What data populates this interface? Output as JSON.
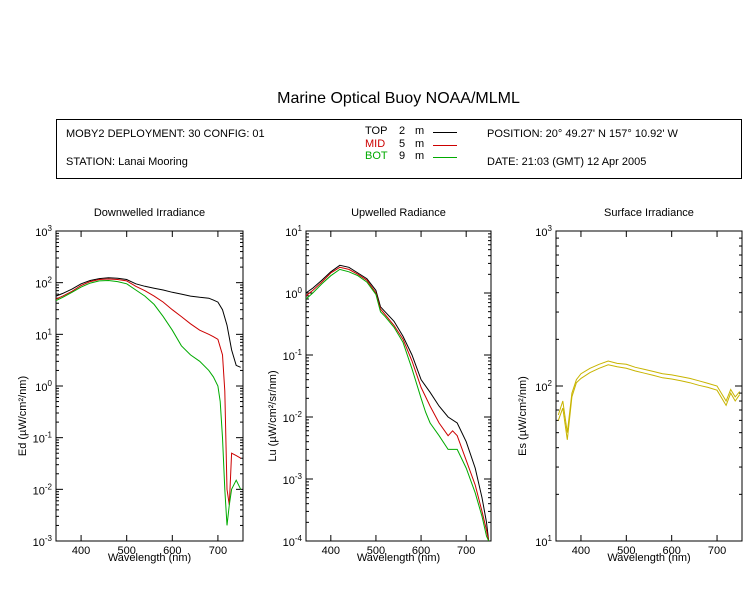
{
  "title": "Marine Optical Buoy NOAA/MLML",
  "info": {
    "deployment": "MOBY2 DEPLOYMENT: 30 CONFIG: 01",
    "station": "STATION: Lanai Mooring",
    "position": "POSITION: 20° 49.27' N   157° 10.92' W",
    "date": "DATE: 21:03 (GMT) 12 Apr 2005",
    "legend": [
      {
        "name": "TOP",
        "depth": "2",
        "unit": "m",
        "color": "#000000"
      },
      {
        "name": "MID",
        "depth": "5",
        "unit": "m",
        "color": "#cc0000"
      },
      {
        "name": "BOT",
        "depth": "9",
        "unit": "m",
        "color": "#00aa00"
      }
    ]
  },
  "chart_data": [
    {
      "type": "line",
      "title": "Downwelled Irradiance",
      "xlabel": "Wavelength (nm)",
      "ylabel": "Ed  (µW/cm²/nm)",
      "xlim": [
        345,
        755
      ],
      "ylim": [
        0.001,
        1000
      ],
      "yscale": "log",
      "xticks": [
        400,
        500,
        600,
        700
      ],
      "yticks": [
        {
          "v": 0.001,
          "label": "10",
          "exp": "-3"
        },
        {
          "v": 0.01,
          "label": "10",
          "exp": "-2"
        },
        {
          "v": 0.1,
          "label": "10",
          "exp": "-1"
        },
        {
          "v": 1,
          "label": "10",
          "exp": "0"
        },
        {
          "v": 10,
          "label": "10",
          "exp": "1"
        },
        {
          "v": 100,
          "label": "10",
          "exp": "2"
        },
        {
          "v": 1000,
          "label": "10",
          "exp": "3"
        }
      ],
      "series": [
        {
          "name": "TOP",
          "color": "#000000",
          "x": [
            345,
            360,
            380,
            400,
            420,
            440,
            460,
            480,
            500,
            520,
            540,
            560,
            580,
            600,
            620,
            640,
            660,
            680,
            690,
            700,
            710,
            720,
            730,
            740,
            750
          ],
          "y": [
            55,
            62,
            75,
            95,
            110,
            120,
            125,
            122,
            115,
            95,
            85,
            78,
            72,
            65,
            60,
            55,
            52,
            50,
            46,
            42,
            30,
            15,
            5,
            2.5,
            2.3
          ]
        },
        {
          "name": "MID",
          "color": "#cc0000",
          "x": [
            345,
            360,
            380,
            400,
            420,
            440,
            460,
            480,
            500,
            520,
            540,
            560,
            580,
            600,
            620,
            640,
            660,
            680,
            690,
            700,
            710,
            715,
            720,
            725,
            730,
            740,
            750
          ],
          "y": [
            48,
            55,
            68,
            88,
            105,
            115,
            118,
            115,
            108,
            85,
            70,
            55,
            42,
            30,
            22,
            16,
            12,
            10,
            9,
            8,
            4,
            0.8,
            0.01,
            0.005,
            0.05,
            0.045,
            0.04
          ]
        },
        {
          "name": "BOT",
          "color": "#00aa00",
          "x": [
            345,
            360,
            380,
            400,
            420,
            440,
            460,
            480,
            500,
            520,
            540,
            560,
            580,
            600,
            620,
            640,
            660,
            680,
            690,
            700,
            705,
            710,
            715,
            720,
            725,
            730,
            740,
            750
          ],
          "y": [
            45,
            52,
            65,
            82,
            98,
            108,
            110,
            105,
            95,
            72,
            55,
            38,
            22,
            12,
            6,
            4,
            3,
            2,
            1.5,
            1,
            0.5,
            0.1,
            0.01,
            0.002,
            0.005,
            0.01,
            0.015,
            0.01
          ]
        }
      ]
    },
    {
      "type": "line",
      "title": "Upwelled Radiance",
      "xlabel": "Wavelength (nm)",
      "ylabel": "Lu  (µW/cm²/sr/nm)",
      "xlim": [
        345,
        755
      ],
      "ylim": [
        0.0001,
        10
      ],
      "yscale": "log",
      "xticks": [
        400,
        500,
        600,
        700
      ],
      "yticks": [
        {
          "v": 0.0001,
          "label": "10",
          "exp": "-4"
        },
        {
          "v": 0.001,
          "label": "10",
          "exp": "-3"
        },
        {
          "v": 0.01,
          "label": "10",
          "exp": "-2"
        },
        {
          "v": 0.1,
          "label": "10",
          "exp": "-1"
        },
        {
          "v": 1,
          "label": "10",
          "exp": "0"
        },
        {
          "v": 10,
          "label": "10",
          "exp": "1"
        }
      ],
      "series": [
        {
          "name": "TOP",
          "color": "#000000",
          "x": [
            345,
            360,
            380,
            400,
            420,
            440,
            460,
            480,
            500,
            510,
            520,
            540,
            560,
            580,
            600,
            620,
            640,
            660,
            680,
            700,
            720,
            735,
            745,
            750
          ],
          "y": [
            1.0,
            1.2,
            1.6,
            2.2,
            2.8,
            2.6,
            2.1,
            1.7,
            1.1,
            0.6,
            0.5,
            0.35,
            0.2,
            0.1,
            0.04,
            0.025,
            0.015,
            0.01,
            0.008,
            0.004,
            0.0015,
            0.0005,
            0.0002,
            0.0001
          ]
        },
        {
          "name": "MID",
          "color": "#cc0000",
          "x": [
            345,
            360,
            380,
            400,
            420,
            440,
            460,
            480,
            500,
            510,
            520,
            540,
            560,
            580,
            600,
            620,
            640,
            660,
            670,
            680,
            700,
            720,
            735,
            745,
            750
          ],
          "y": [
            0.9,
            1.1,
            1.5,
            2.1,
            2.6,
            2.4,
            2.0,
            1.6,
            1.0,
            0.55,
            0.45,
            0.3,
            0.18,
            0.08,
            0.03,
            0.015,
            0.008,
            0.005,
            0.006,
            0.005,
            0.002,
            0.0008,
            0.0003,
            0.00015,
            0.0001
          ]
        },
        {
          "name": "BOT",
          "color": "#00aa00",
          "x": [
            345,
            360,
            380,
            400,
            420,
            440,
            460,
            480,
            500,
            510,
            520,
            540,
            560,
            580,
            600,
            610,
            620,
            640,
            660,
            680,
            700,
            720,
            735,
            745,
            750
          ],
          "y": [
            0.8,
            1.0,
            1.4,
            1.9,
            2.4,
            2.2,
            1.9,
            1.5,
            0.95,
            0.5,
            0.42,
            0.28,
            0.16,
            0.06,
            0.02,
            0.012,
            0.008,
            0.005,
            0.003,
            0.003,
            0.0015,
            0.0006,
            0.00025,
            0.00012,
            0.0001
          ]
        }
      ]
    },
    {
      "type": "line",
      "title": "Surface Irradiance",
      "xlabel": "Wavelength (nm)",
      "ylabel": "Es  (µW/cm²/nm)",
      "xlim": [
        345,
        755
      ],
      "ylim": [
        10,
        1000
      ],
      "yscale": "log",
      "xticks": [
        400,
        500,
        600,
        700
      ],
      "yticks": [
        {
          "v": 10,
          "label": "10",
          "exp": "1"
        },
        {
          "v": 100,
          "label": "10",
          "exp": "2"
        },
        {
          "v": 1000,
          "label": "10",
          "exp": "3"
        }
      ],
      "series": [
        {
          "name": "Es",
          "color": "#c8b400",
          "x": [
            350,
            360,
            370,
            380,
            390,
            400,
            420,
            440,
            460,
            480,
            500,
            520,
            540,
            560,
            580,
            600,
            620,
            640,
            660,
            680,
            700,
            720,
            730,
            740,
            750
          ],
          "y": [
            65,
            80,
            50,
            90,
            110,
            120,
            130,
            138,
            145,
            140,
            138,
            132,
            128,
            124,
            120,
            118,
            115,
            112,
            108,
            104,
            100,
            80,
            95,
            85,
            92
          ]
        },
        {
          "name": "Es",
          "color": "#c8b400",
          "x": [
            350,
            360,
            370,
            380,
            390,
            400,
            420,
            440,
            460,
            480,
            500,
            520,
            540,
            560,
            580,
            600,
            620,
            640,
            660,
            680,
            700,
            720,
            730,
            740,
            750
          ],
          "y": [
            60,
            72,
            45,
            85,
            105,
            112,
            122,
            130,
            137,
            133,
            130,
            125,
            121,
            117,
            113,
            111,
            108,
            105,
            101,
            98,
            94,
            75,
            90,
            80,
            88
          ]
        }
      ]
    }
  ]
}
